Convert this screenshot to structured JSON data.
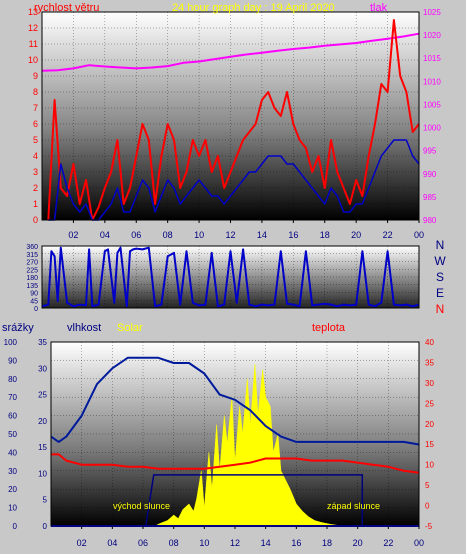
{
  "colors": {
    "background": "#c8c8c8",
    "wind_speed": "#ff0000",
    "wind_avg": "#0000c8",
    "pressure": "#ff00ff",
    "title": "#ffff00",
    "direction": "#0000c8",
    "humidity": "#001a9c",
    "solar": "#ffff00",
    "temperature": "#ff0000",
    "rain": "#0000ff",
    "sun_marker": "#000080",
    "label_red": "#ff0000",
    "label_blue": "#000080",
    "axis_left_top": "#ff0000",
    "axis_right_top": "#ff00ff"
  },
  "chart_data": [
    {
      "type": "line",
      "title": "24 hour graph day : 19 April 2020",
      "left_label": "rychlost větru",
      "right_label": "tlak",
      "x_ticks": [
        "02",
        "04",
        "06",
        "08",
        "10",
        "12",
        "14",
        "16",
        "18",
        "20",
        "22",
        "00"
      ],
      "y_left_ticks": [
        0,
        1,
        2,
        3,
        4,
        5,
        6,
        7,
        8,
        9,
        10,
        11,
        12,
        "13"
      ],
      "y_left_range": [
        0,
        13
      ],
      "y_right_ticks": [
        980,
        985,
        990,
        995,
        1000,
        1005,
        1010,
        1015,
        1020,
        1025
      ],
      "y_right_range": [
        980,
        1025
      ],
      "grid": true,
      "series": [
        {
          "role": "wind-gust",
          "x": [
            0.4,
            0.8,
            1.2,
            1.6,
            2.0,
            2.4,
            2.8,
            3.2,
            3.6,
            4.0,
            4.4,
            4.8,
            5.2,
            5.6,
            6.0,
            6.4,
            6.8,
            7.2,
            7.6,
            8.0,
            8.4,
            8.8,
            9.2,
            9.6,
            10.0,
            10.4,
            10.8,
            11.2,
            11.6,
            12.0,
            12.4,
            12.8,
            13.2,
            13.6,
            14.0,
            14.4,
            14.8,
            15.2,
            15.6,
            16.0,
            16.4,
            16.8,
            17.2,
            17.6,
            18.0,
            18.4,
            18.8,
            19.2,
            19.6,
            20.0,
            20.4,
            20.8,
            21.2,
            21.6,
            22.0,
            22.4,
            22.8,
            23.2,
            23.6,
            24.0
          ],
          "values": [
            0,
            7.5,
            2,
            1.5,
            3.5,
            1,
            2.5,
            0,
            0.8,
            2,
            3,
            5,
            1,
            2,
            4,
            6,
            5,
            1,
            4,
            6,
            5,
            2,
            3,
            5,
            4,
            5,
            3,
            4,
            2,
            3,
            4,
            5,
            5.5,
            6,
            7.5,
            8,
            7,
            6.5,
            8,
            6,
            5,
            4.5,
            3,
            4,
            2,
            5,
            3,
            2,
            1,
            2.5,
            1.5,
            4,
            6,
            8.5,
            8,
            12.5,
            9,
            8,
            5.5,
            6
          ]
        },
        {
          "role": "wind-average",
          "x": [
            0.4,
            0.8,
            1.2,
            1.6,
            2.0,
            2.4,
            2.8,
            3.2,
            3.6,
            4.0,
            4.4,
            4.8,
            5.2,
            5.6,
            6.0,
            6.4,
            6.8,
            7.2,
            7.6,
            8.0,
            8.4,
            8.8,
            9.2,
            9.6,
            10.0,
            10.4,
            10.8,
            11.2,
            11.6,
            12.0,
            12.4,
            12.8,
            13.2,
            13.6,
            14.0,
            14.4,
            14.8,
            15.2,
            15.6,
            16.0,
            16.4,
            16.8,
            17.2,
            17.6,
            18.0,
            18.4,
            18.8,
            19.2,
            19.6,
            20.0,
            20.4,
            20.8,
            21.2,
            21.6,
            22.0,
            22.4,
            22.8,
            23.2,
            23.6,
            24.0
          ],
          "values": [
            0,
            0,
            3.5,
            2,
            1,
            0.5,
            1,
            0,
            0,
            0.5,
            1,
            2,
            0.5,
            0.5,
            1.5,
            2.5,
            2,
            0.5,
            1.5,
            2.5,
            2,
            1,
            1.5,
            2,
            2.5,
            2,
            1.5,
            1.5,
            1,
            1.5,
            2,
            2.5,
            3,
            3,
            3.5,
            4,
            4,
            4,
            3.5,
            3.5,
            3,
            2.5,
            2,
            1.5,
            1,
            2,
            1.5,
            0.5,
            0.5,
            1,
            1,
            2,
            3,
            4,
            4.5,
            5,
            5,
            5,
            4,
            3.5
          ]
        },
        {
          "role": "pressure",
          "axis": "right",
          "x": [
            0,
            1,
            2,
            3,
            4,
            5,
            6,
            7,
            8,
            9,
            10,
            11,
            12,
            13,
            14,
            15,
            16,
            17,
            18,
            19,
            20,
            21,
            22,
            23,
            24
          ],
          "values": [
            1012.3,
            1012.4,
            1012.8,
            1013.5,
            1013.2,
            1013.0,
            1012.8,
            1013.0,
            1013.3,
            1014.0,
            1014.3,
            1014.8,
            1015.3,
            1015.8,
            1016.2,
            1016.6,
            1017.0,
            1017.3,
            1017.7,
            1018.0,
            1018.3,
            1018.8,
            1019.2,
            1019.7,
            1020.3
          ]
        }
      ]
    },
    {
      "type": "line",
      "y_ticks": [
        0,
        45,
        90,
        135,
        180,
        225,
        270,
        315,
        360
      ],
      "y_range": [
        0,
        360
      ],
      "compass_labels": [
        "N",
        "W",
        "S",
        "E",
        "N"
      ],
      "grid": true,
      "series": [
        {
          "role": "wind-direction",
          "x": [
            0.0,
            0.4,
            0.6,
            0.8,
            1.0,
            1.2,
            1.6,
            2.0,
            2.4,
            2.8,
            3.0,
            3.2,
            3.6,
            4.0,
            4.2,
            4.6,
            4.8,
            5.0,
            5.4,
            5.6,
            5.8,
            6.0,
            6.4,
            6.8,
            7.2,
            7.6,
            8.0,
            8.4,
            8.8,
            9.2,
            9.6,
            10.0,
            10.4,
            10.8,
            11.2,
            11.6,
            12.0,
            12.4,
            12.8,
            13.2,
            13.6,
            14.0,
            14.4,
            14.8,
            15.2,
            15.6,
            16.0,
            16.4,
            16.8,
            17.2,
            17.6,
            18.0,
            18.4,
            18.8,
            19.2,
            19.6,
            20.0,
            20.4,
            20.8,
            21.2,
            21.6,
            22.0,
            22.4,
            22.8,
            23.2,
            23.6,
            24.0
          ],
          "values": [
            10,
            20,
            330,
            300,
            40,
            350,
            30,
            10,
            20,
            15,
            340,
            10,
            20,
            330,
            340,
            30,
            320,
            350,
            10,
            330,
            340,
            345,
            340,
            350,
            10,
            20,
            300,
            320,
            20,
            330,
            30,
            15,
            20,
            320,
            10,
            20,
            330,
            30,
            340,
            20,
            10,
            20,
            15,
            20,
            330,
            25,
            20,
            10,
            330,
            15,
            20,
            25,
            20,
            10,
            20,
            15,
            20,
            330,
            20,
            10,
            30,
            330,
            20,
            15,
            20,
            10,
            20
          ]
        }
      ]
    },
    {
      "type": "area",
      "left_label": "srážky",
      "humidity_label": "vlhkost",
      "solar_label": "Solar",
      "right_label": "teplota",
      "sunrise_label": "východ slunce",
      "sunset_label": "západ slunce",
      "x_ticks": [
        "02",
        "04",
        "06",
        "08",
        "10",
        "12",
        "14",
        "16",
        "18",
        "20",
        "22",
        "00"
      ],
      "y_rain_ticks": [
        0,
        10,
        20,
        30,
        40,
        50,
        60,
        70,
        80,
        90,
        100
      ],
      "y_rain_range": [
        0,
        100
      ],
      "y_humidity_ticks": [
        0,
        5,
        10,
        15,
        20,
        25,
        30,
        35
      ],
      "y_humidity_range": [
        0,
        35
      ],
      "y_temp_ticks": [
        -5,
        0,
        5,
        10,
        15,
        20,
        25,
        30,
        35,
        40
      ],
      "y_temp_range": [
        -5,
        40
      ],
      "grid": true,
      "series": [
        {
          "role": "humidity",
          "x": [
            0,
            0.5,
            1,
            2,
            3,
            4,
            5,
            6,
            7,
            8,
            9,
            10,
            11,
            12,
            13,
            14,
            15,
            16,
            17,
            18,
            19,
            20,
            21,
            22,
            23,
            24
          ],
          "values": [
            17,
            16,
            17,
            21,
            27,
            30,
            32,
            32,
            32,
            31,
            31,
            29,
            25,
            24,
            22,
            19,
            17,
            16,
            16,
            16,
            16,
            16,
            16,
            16,
            16,
            15.5
          ]
        },
        {
          "role": "temperature",
          "x": [
            0,
            0.5,
            1,
            2,
            3,
            4,
            5,
            6,
            7,
            8,
            9,
            10,
            11,
            12,
            13,
            14,
            15,
            16,
            17,
            18,
            19,
            20,
            21,
            22,
            23,
            24
          ],
          "values": [
            12.5,
            12.5,
            11,
            10,
            10,
            10,
            9.5,
            9.5,
            9,
            9,
            9,
            9,
            9.5,
            10,
            10.5,
            11.5,
            11.5,
            11.5,
            11,
            11,
            11,
            10.5,
            10,
            9.5,
            8.5,
            8
          ]
        },
        {
          "role": "solar",
          "x": [
            0,
            6.8,
            7.0,
            7.3,
            7.6,
            8.0,
            8.3,
            8.6,
            9.0,
            9.3,
            9.5,
            9.8,
            10.0,
            10.3,
            10.5,
            10.8,
            11.0,
            11.3,
            11.5,
            11.8,
            12.0,
            12.3,
            12.5,
            12.8,
            13.0,
            13.3,
            13.5,
            13.8,
            14.0,
            14.3,
            14.5,
            14.8,
            15.0,
            15.3,
            15.6,
            16.0,
            16.4,
            16.8,
            17.2,
            17.6,
            18.2,
            19.0,
            24
          ],
          "values": [
            0,
            0,
            1,
            2,
            3,
            6,
            4,
            9,
            12,
            8,
            15,
            30,
            10,
            40,
            20,
            55,
            30,
            60,
            45,
            70,
            35,
            65,
            50,
            80,
            55,
            88,
            60,
            85,
            70,
            65,
            40,
            50,
            30,
            25,
            20,
            12,
            8,
            5,
            3,
            2,
            1,
            0,
            0
          ]
        },
        {
          "role": "rain",
          "x": [
            0,
            24
          ],
          "values": [
            0,
            0
          ]
        },
        {
          "role": "sun-marker",
          "sunrise_hour": 6.7,
          "sunset_hour": 20.3,
          "level": 7.5
        }
      ]
    }
  ]
}
